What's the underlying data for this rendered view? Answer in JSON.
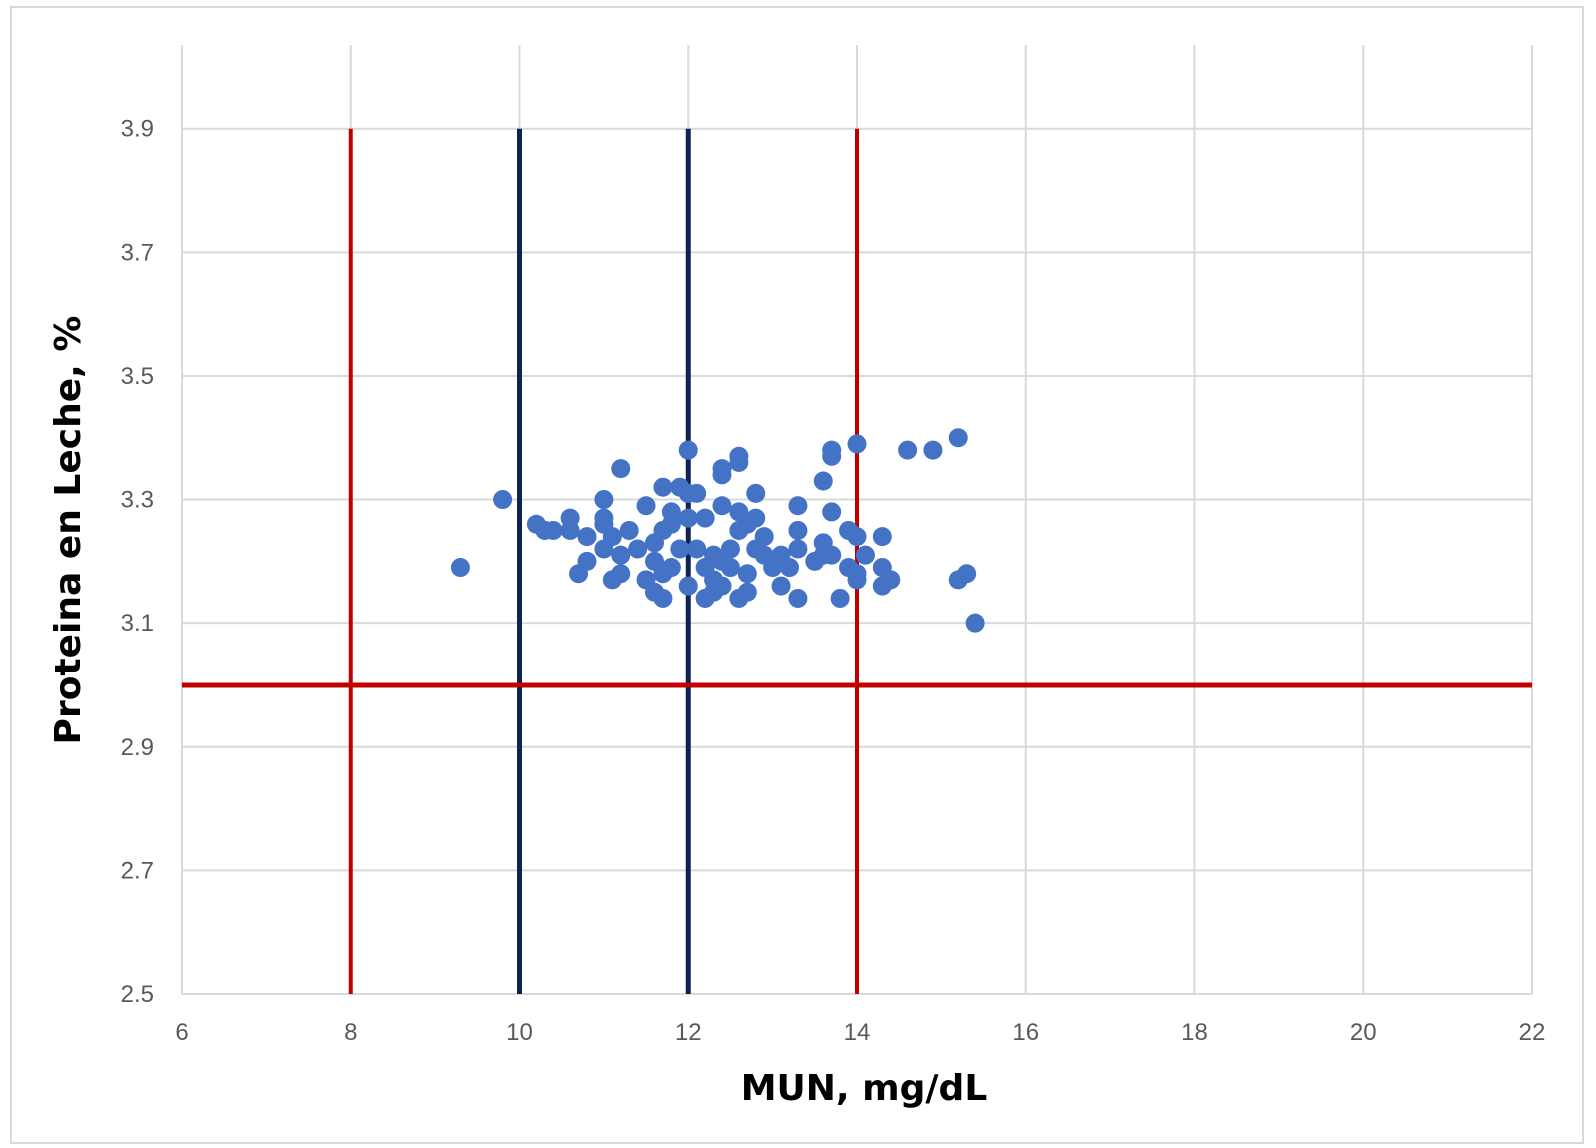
{
  "chart_data": {
    "type": "scatter",
    "xlabel": "MUN, mg/dL",
    "ylabel": "Proteina en Leche, %",
    "xlim": [
      6,
      22
    ],
    "ylim": [
      2.5,
      3.9
    ],
    "x_ticks": [
      "6",
      "8",
      "10",
      "12",
      "14",
      "16",
      "18",
      "20",
      "22"
    ],
    "y_ticks": [
      "2.5",
      "2.7",
      "2.9",
      "3.1",
      "3.3",
      "3.5",
      "3.7",
      "3.9"
    ],
    "grid": true,
    "legend": "none",
    "point_color": "#4472C4",
    "reference_lines": [
      {
        "orientation": "vertical",
        "x": 8,
        "y_from": 2.5,
        "y_to": 3.9,
        "color": "#C00000"
      },
      {
        "orientation": "vertical",
        "x": 14,
        "y_from": 2.5,
        "y_to": 3.9,
        "color": "#C00000"
      },
      {
        "orientation": "vertical",
        "x": 10,
        "y_from": 2.5,
        "y_to": 3.9,
        "color": "#0E2351"
      },
      {
        "orientation": "vertical",
        "x": 12,
        "y_from": 2.5,
        "y_to": 3.9,
        "color": "#0E2351"
      },
      {
        "orientation": "horizontal",
        "y": 3.0,
        "x_from": 6,
        "x_to": 22,
        "color": "#C00000"
      }
    ],
    "points": [
      {
        "x": 9.3,
        "y": 3.19
      },
      {
        "x": 9.8,
        "y": 3.3
      },
      {
        "x": 10.2,
        "y": 3.26
      },
      {
        "x": 10.3,
        "y": 3.25
      },
      {
        "x": 10.4,
        "y": 3.25
      },
      {
        "x": 10.6,
        "y": 3.27
      },
      {
        "x": 10.6,
        "y": 3.25
      },
      {
        "x": 10.7,
        "y": 3.18
      },
      {
        "x": 10.8,
        "y": 3.24
      },
      {
        "x": 10.8,
        "y": 3.2
      },
      {
        "x": 11.0,
        "y": 3.3
      },
      {
        "x": 11.0,
        "y": 3.27
      },
      {
        "x": 11.0,
        "y": 3.26
      },
      {
        "x": 11.0,
        "y": 3.22
      },
      {
        "x": 11.1,
        "y": 3.24
      },
      {
        "x": 11.1,
        "y": 3.17
      },
      {
        "x": 11.2,
        "y": 3.35
      },
      {
        "x": 11.2,
        "y": 3.21
      },
      {
        "x": 11.2,
        "y": 3.18
      },
      {
        "x": 11.3,
        "y": 3.25
      },
      {
        "x": 11.4,
        "y": 3.22
      },
      {
        "x": 11.5,
        "y": 3.29
      },
      {
        "x": 11.5,
        "y": 3.17
      },
      {
        "x": 11.6,
        "y": 3.23
      },
      {
        "x": 11.6,
        "y": 3.2
      },
      {
        "x": 11.6,
        "y": 3.15
      },
      {
        "x": 11.7,
        "y": 3.32
      },
      {
        "x": 11.7,
        "y": 3.25
      },
      {
        "x": 11.7,
        "y": 3.18
      },
      {
        "x": 11.7,
        "y": 3.14
      },
      {
        "x": 11.8,
        "y": 3.28
      },
      {
        "x": 11.8,
        "y": 3.26
      },
      {
        "x": 11.8,
        "y": 3.19
      },
      {
        "x": 11.9,
        "y": 3.32
      },
      {
        "x": 11.9,
        "y": 3.22
      },
      {
        "x": 12.0,
        "y": 3.38
      },
      {
        "x": 12.0,
        "y": 3.31
      },
      {
        "x": 12.0,
        "y": 3.27
      },
      {
        "x": 12.0,
        "y": 3.16
      },
      {
        "x": 12.1,
        "y": 3.31
      },
      {
        "x": 12.1,
        "y": 3.22
      },
      {
        "x": 12.2,
        "y": 3.27
      },
      {
        "x": 12.2,
        "y": 3.19
      },
      {
        "x": 12.2,
        "y": 3.14
      },
      {
        "x": 12.3,
        "y": 3.21
      },
      {
        "x": 12.3,
        "y": 3.17
      },
      {
        "x": 12.3,
        "y": 3.15
      },
      {
        "x": 12.4,
        "y": 3.35
      },
      {
        "x": 12.4,
        "y": 3.34
      },
      {
        "x": 12.4,
        "y": 3.29
      },
      {
        "x": 12.4,
        "y": 3.2
      },
      {
        "x": 12.4,
        "y": 3.16
      },
      {
        "x": 12.5,
        "y": 3.22
      },
      {
        "x": 12.5,
        "y": 3.19
      },
      {
        "x": 12.6,
        "y": 3.37
      },
      {
        "x": 12.6,
        "y": 3.36
      },
      {
        "x": 12.6,
        "y": 3.28
      },
      {
        "x": 12.6,
        "y": 3.25
      },
      {
        "x": 12.6,
        "y": 3.14
      },
      {
        "x": 12.7,
        "y": 3.26
      },
      {
        "x": 12.7,
        "y": 3.18
      },
      {
        "x": 12.7,
        "y": 3.15
      },
      {
        "x": 12.8,
        "y": 3.31
      },
      {
        "x": 12.8,
        "y": 3.27
      },
      {
        "x": 12.8,
        "y": 3.22
      },
      {
        "x": 12.9,
        "y": 3.24
      },
      {
        "x": 12.9,
        "y": 3.21
      },
      {
        "x": 13.0,
        "y": 3.19
      },
      {
        "x": 13.1,
        "y": 3.21
      },
      {
        "x": 13.1,
        "y": 3.16
      },
      {
        "x": 13.2,
        "y": 3.19
      },
      {
        "x": 13.3,
        "y": 3.29
      },
      {
        "x": 13.3,
        "y": 3.25
      },
      {
        "x": 13.3,
        "y": 3.22
      },
      {
        "x": 13.3,
        "y": 3.14
      },
      {
        "x": 13.5,
        "y": 3.2
      },
      {
        "x": 13.6,
        "y": 3.33
      },
      {
        "x": 13.6,
        "y": 3.23
      },
      {
        "x": 13.6,
        "y": 3.21
      },
      {
        "x": 13.7,
        "y": 3.38
      },
      {
        "x": 13.7,
        "y": 3.37
      },
      {
        "x": 13.7,
        "y": 3.28
      },
      {
        "x": 13.7,
        "y": 3.21
      },
      {
        "x": 13.8,
        "y": 3.14
      },
      {
        "x": 13.9,
        "y": 3.25
      },
      {
        "x": 13.9,
        "y": 3.19
      },
      {
        "x": 14.0,
        "y": 3.39
      },
      {
        "x": 14.0,
        "y": 3.24
      },
      {
        "x": 14.0,
        "y": 3.18
      },
      {
        "x": 14.0,
        "y": 3.17
      },
      {
        "x": 14.1,
        "y": 3.21
      },
      {
        "x": 14.3,
        "y": 3.24
      },
      {
        "x": 14.3,
        "y": 3.19
      },
      {
        "x": 14.3,
        "y": 3.16
      },
      {
        "x": 14.4,
        "y": 3.17
      },
      {
        "x": 14.6,
        "y": 3.38
      },
      {
        "x": 14.9,
        "y": 3.38
      },
      {
        "x": 15.2,
        "y": 3.4
      },
      {
        "x": 15.2,
        "y": 3.17
      },
      {
        "x": 15.3,
        "y": 3.18
      },
      {
        "x": 15.4,
        "y": 3.1
      }
    ]
  }
}
